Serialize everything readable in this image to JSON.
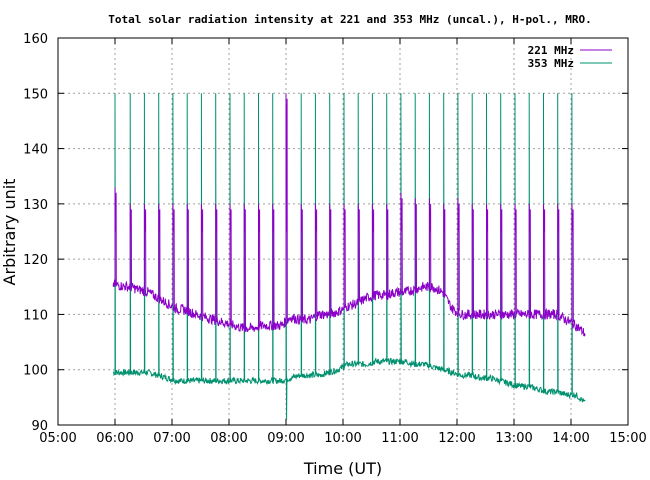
{
  "chart_data": {
    "type": "line",
    "title": "Total solar radiation intensity at 221 and 353 MHz (uncal.), H-pol., MRO.",
    "xlabel": "Time (UT)",
    "ylabel": "Arbitrary unit",
    "xlim": [
      "05:00",
      "15:00"
    ],
    "ylim": [
      90,
      160
    ],
    "x_ticks": [
      "05:00",
      "06:00",
      "07:00",
      "08:00",
      "09:00",
      "10:00",
      "11:00",
      "12:00",
      "13:00",
      "14:00",
      "15:00"
    ],
    "y_ticks": [
      90,
      100,
      110,
      120,
      130,
      140,
      150,
      160
    ],
    "grid": true,
    "legend": "top-right",
    "series": [
      {
        "name": "221 MHz",
        "color": "#8b00c8",
        "x": [
          "05:58",
          "06:05",
          "06:15",
          "06:25",
          "06:35",
          "06:45",
          "06:55",
          "07:05",
          "07:15",
          "07:25",
          "07:35",
          "07:45",
          "07:55",
          "08:05",
          "08:15",
          "08:25",
          "08:35",
          "08:45",
          "08:55",
          "09:05",
          "09:15",
          "09:25",
          "09:35",
          "09:45",
          "09:55",
          "10:05",
          "10:15",
          "10:25",
          "10:35",
          "10:45",
          "10:55",
          "11:05",
          "11:15",
          "11:25",
          "11:35",
          "11:45",
          "11:55",
          "12:05",
          "12:15",
          "12:25",
          "12:35",
          "12:45",
          "12:55",
          "13:05",
          "13:15",
          "13:25",
          "13:35",
          "13:45",
          "13:55",
          "14:05",
          "14:15"
        ],
        "values": [
          115.5,
          115.2,
          115,
          114.5,
          114,
          113,
          112,
          111,
          110.8,
          110,
          109.5,
          109,
          108.5,
          108,
          107.5,
          107.5,
          108,
          108,
          108,
          109.5,
          109,
          109,
          110,
          110,
          110.5,
          111.5,
          112,
          113,
          113.5,
          113.5,
          114,
          114,
          114.5,
          115,
          115,
          114,
          111,
          110,
          110,
          110,
          110,
          110,
          110,
          110,
          110,
          110,
          110,
          110,
          109,
          108,
          106.5
        ]
      },
      {
        "name": "353 MHz",
        "color": "#00906e",
        "x": [
          "05:58",
          "06:05",
          "06:15",
          "06:25",
          "06:35",
          "06:45",
          "06:55",
          "07:05",
          "07:15",
          "07:25",
          "07:35",
          "07:45",
          "07:55",
          "08:05",
          "08:15",
          "08:25",
          "08:35",
          "08:45",
          "08:55",
          "09:05",
          "09:15",
          "09:25",
          "09:35",
          "09:45",
          "09:55",
          "10:05",
          "10:15",
          "10:25",
          "10:35",
          "10:45",
          "10:55",
          "11:05",
          "11:15",
          "11:25",
          "11:35",
          "11:45",
          "11:55",
          "12:05",
          "12:15",
          "12:25",
          "12:35",
          "12:45",
          "12:55",
          "13:05",
          "13:15",
          "13:25",
          "13:35",
          "13:45",
          "13:55",
          "14:05",
          "14:15"
        ],
        "values": [
          99.5,
          99.5,
          99.5,
          99.5,
          99.5,
          99,
          98.5,
          98,
          98,
          98,
          98,
          98,
          98,
          98,
          98,
          98,
          98,
          98,
          98,
          98.5,
          99,
          99,
          99,
          99.5,
          100,
          101,
          101,
          101,
          101.5,
          101.5,
          101.5,
          101.5,
          101,
          101,
          100.5,
          100,
          99.5,
          99,
          99,
          98.5,
          98.5,
          98,
          97.5,
          97,
          97,
          96.5,
          96,
          96,
          95.5,
          95.5,
          94
        ]
      }
    ],
    "spikes": {
      "times": [
        "06:00",
        "06:16",
        "06:31",
        "06:46",
        "07:01",
        "07:16",
        "07:31",
        "07:46",
        "08:01",
        "08:16",
        "08:31",
        "08:46",
        "09:00",
        "09:16",
        "09:31",
        "09:46",
        "10:01",
        "10:16",
        "10:31",
        "10:46",
        "11:01",
        "11:16",
        "11:31",
        "11:46",
        "12:01",
        "12:16",
        "12:31",
        "12:46",
        "13:01",
        "13:16",
        "13:31",
        "13:46",
        "14:01"
      ],
      "peak_221": [
        133,
        130,
        130,
        130,
        130,
        130,
        130,
        130,
        130,
        130,
        130,
        130,
        150,
        130,
        130,
        130,
        130,
        130,
        130,
        130,
        132,
        131,
        131,
        130,
        131,
        130,
        130,
        130,
        130,
        130,
        130,
        130,
        130
      ],
      "trough_221": 125,
      "peak_353": [
        150,
        150,
        150,
        150,
        150,
        150,
        150,
        150,
        150,
        150,
        150,
        150,
        150,
        150,
        150,
        150,
        150,
        150,
        150,
        150,
        150,
        150,
        150,
        150,
        150,
        150,
        150,
        150,
        150,
        150,
        150,
        150,
        150
      ],
      "dip_353": 91
    }
  }
}
